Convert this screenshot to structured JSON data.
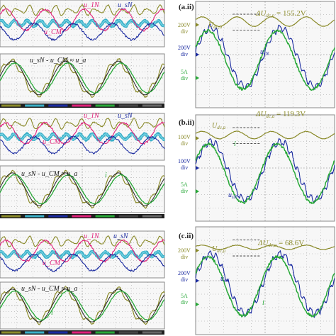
{
  "colors": {
    "olive": "#8a8a2a",
    "cyan": "#3ab0c8",
    "blue": "#1a2aa0",
    "magenta": "#e0207a",
    "green": "#28a838",
    "dark": "#222222",
    "grid": "#9a9a9a",
    "bg": "#f7f7f7",
    "frame": "#888888"
  },
  "left_panels": [
    {
      "name": "a-left",
      "top_traces_label": {
        "u_cm": "u_CM",
        "u_1n": "u_1N",
        "u_sn": "u_sN"
      },
      "bottom_formula": "u_sN - u_CM ≈ u_a",
      "current_label": "i"
    },
    {
      "name": "b-left",
      "top_traces_label": {
        "u_cm": "u_CM",
        "u_1n": "u_1N",
        "u_sn": "u_sN"
      },
      "bottom_formula": "u_sN - u_CM ≈ u_a",
      "current_label": "i"
    },
    {
      "name": "c-left",
      "top_traces_label": {
        "u_cm": "u_CM",
        "u_1n": "u_1N",
        "u_sn": "u_sN"
      },
      "bottom_formula": "u_sN - u_CM ≈ u_a",
      "current_label": "i"
    }
  ],
  "right_panels": [
    {
      "id": "(a.ii)",
      "delta_label": "ΔU",
      "delta_sub": "dc,a",
      "delta_value": " = 155.2V",
      "u_dc_label": "U",
      "u_dc_sub": "dc,a",
      "u_sn_label": "u",
      "u_sn_sub": "sN",
      "i_label": "i",
      "scale_1": "200V",
      "scale_2": "200V",
      "scale_3": "5A",
      "div": "div"
    },
    {
      "id": "(b.ii)",
      "delta_label": "ΔU",
      "delta_sub": "dc,a",
      "delta_value": " = 119.3V",
      "u_dc_label": "U",
      "u_dc_sub": "dc,a",
      "u_sn_label": "u",
      "u_sn_sub": "sN",
      "i_label": "i",
      "scale_1": "100V",
      "scale_2": "100V",
      "scale_3": "5A",
      "div": "div"
    },
    {
      "id": "(c.ii)",
      "delta_label": "ΔU",
      "delta_sub": "dc,a",
      "delta_value": " = 68.6V",
      "u_dc_label": "U",
      "u_dc_sub": "dc,a",
      "u_sn_label": "u",
      "u_sn_sub": "sN",
      "i_label": "i",
      "scale_1": "200V",
      "scale_2": "200V",
      "scale_3": "5A",
      "div": "div"
    }
  ],
  "chart_data": [
    {
      "type": "line",
      "panel": "(a.ii)",
      "series": [
        {
          "name": "U_dc,a",
          "peak_to_peak_V": 155.2
        },
        {
          "name": "u_sN"
        },
        {
          "name": "i"
        }
      ]
    },
    {
      "type": "line",
      "panel": "(b.ii)",
      "series": [
        {
          "name": "U_dc,a",
          "peak_to_peak_V": 119.3
        },
        {
          "name": "u_sN"
        },
        {
          "name": "i"
        }
      ]
    },
    {
      "type": "line",
      "panel": "(c.ii)",
      "series": [
        {
          "name": "U_dc,a",
          "peak_to_peak_V": 68.6
        },
        {
          "name": "u_sN"
        },
        {
          "name": "i"
        }
      ]
    }
  ]
}
